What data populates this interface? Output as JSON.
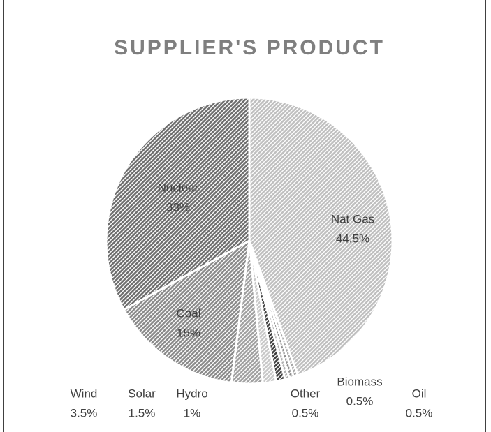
{
  "chart_data": {
    "type": "pie",
    "title": "SUPPLIER'S PRODUCT",
    "categories": [
      "Nat Gas",
      "Oil",
      "Biomass",
      "Other",
      "Hydro",
      "Solar",
      "Wind",
      "Coal",
      "Nuclear"
    ],
    "values": [
      44.5,
      0.5,
      0.5,
      0.5,
      1,
      1.5,
      3.5,
      15,
      33
    ],
    "value_labels": [
      "44.5%",
      "0.5%",
      "0.5%",
      "0.5%",
      "1%",
      "1.5%",
      "3.5%",
      "15%",
      "33%"
    ],
    "colors": [
      "#bfbfbf",
      "#a6a6a6",
      "#8c8c8c",
      "#b0b0b0",
      "#404040",
      "#c8c8c8",
      "#a0a0a0",
      "#8a8a8a",
      "#6e6e6e"
    ]
  }
}
